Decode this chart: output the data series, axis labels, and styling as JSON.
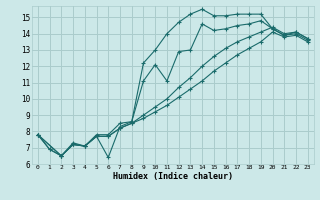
{
  "xlabel": "Humidex (Indice chaleur)",
  "bg_color": "#cce8e8",
  "grid_color": "#aacccc",
  "line_color": "#1a6b6b",
  "xlim": [
    -0.5,
    23.5
  ],
  "ylim": [
    6.0,
    15.7
  ],
  "yticks": [
    6,
    7,
    8,
    9,
    10,
    11,
    12,
    13,
    14,
    15
  ],
  "xticks": [
    0,
    1,
    2,
    3,
    4,
    5,
    6,
    7,
    8,
    9,
    10,
    11,
    12,
    13,
    14,
    15,
    16,
    17,
    18,
    19,
    20,
    21,
    22,
    23
  ],
  "series": [
    {
      "x": [
        0,
        1,
        2,
        3,
        4,
        5,
        6,
        7,
        8,
        9,
        10,
        11,
        12,
        13,
        14,
        15,
        16,
        17,
        18,
        19,
        20,
        21,
        22,
        23
      ],
      "y": [
        7.8,
        6.9,
        6.5,
        7.3,
        7.1,
        7.8,
        7.8,
        8.5,
        8.6,
        12.2,
        13.0,
        14.0,
        14.7,
        15.2,
        15.5,
        15.1,
        15.1,
        15.2,
        15.2,
        15.2,
        14.3,
        13.9,
        14.1,
        13.7
      ]
    },
    {
      "x": [
        0,
        1,
        2,
        3,
        4,
        5,
        6,
        7,
        8,
        9,
        10,
        11,
        12,
        13,
        14,
        15,
        16,
        17,
        18,
        19,
        20,
        21,
        22,
        23
      ],
      "y": [
        7.8,
        6.9,
        6.5,
        7.2,
        7.1,
        7.7,
        6.4,
        8.3,
        8.6,
        11.1,
        12.1,
        11.1,
        12.9,
        13.0,
        14.6,
        14.2,
        14.3,
        14.5,
        14.6,
        14.8,
        14.3,
        13.9,
        14.0,
        13.6
      ]
    },
    {
      "x": [
        0,
        2,
        3,
        4,
        5,
        6,
        7,
        8,
        9,
        10,
        11,
        12,
        13,
        14,
        15,
        16,
        17,
        18,
        19,
        20,
        21,
        22,
        23
      ],
      "y": [
        7.8,
        6.5,
        7.2,
        7.1,
        7.7,
        7.7,
        8.2,
        8.5,
        9.0,
        9.5,
        10.0,
        10.7,
        11.3,
        12.0,
        12.6,
        13.1,
        13.5,
        13.8,
        14.1,
        14.4,
        14.0,
        14.1,
        13.7
      ]
    },
    {
      "x": [
        0,
        2,
        3,
        4,
        5,
        6,
        7,
        8,
        9,
        10,
        11,
        12,
        13,
        14,
        15,
        16,
        17,
        18,
        19,
        20,
        21,
        22,
        23
      ],
      "y": [
        7.8,
        6.5,
        7.2,
        7.1,
        7.7,
        7.7,
        8.2,
        8.5,
        8.8,
        9.2,
        9.6,
        10.1,
        10.6,
        11.1,
        11.7,
        12.2,
        12.7,
        13.1,
        13.5,
        14.1,
        13.8,
        13.9,
        13.5
      ]
    }
  ]
}
